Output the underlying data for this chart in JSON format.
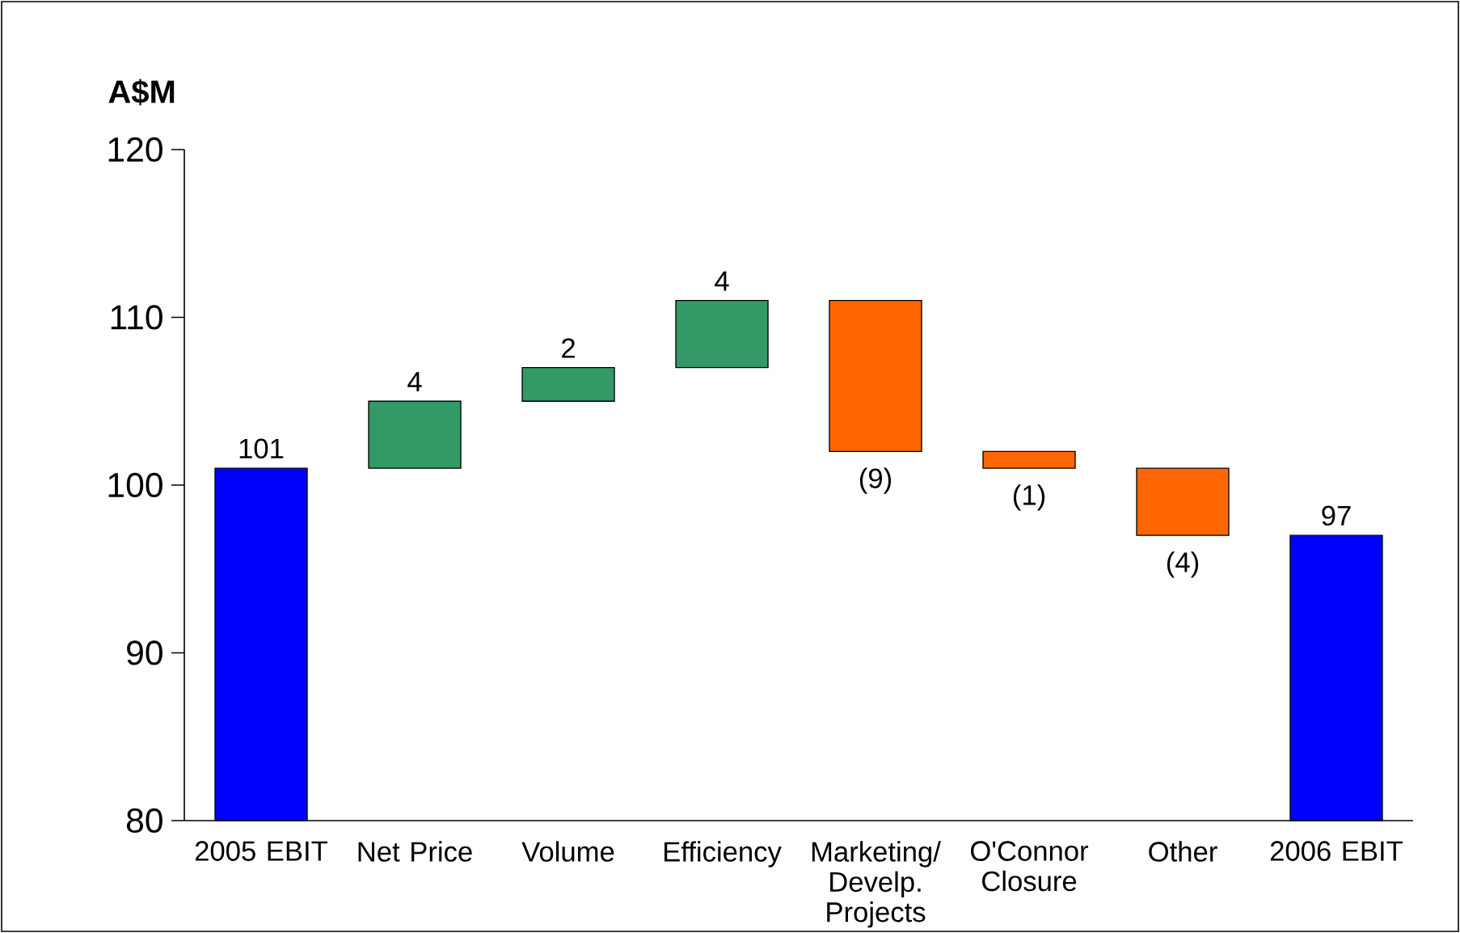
{
  "chart_data": {
    "type": "bar",
    "title": "A$M",
    "categories": [
      "2005 EBIT",
      "Net Price",
      "Volume",
      "Efficiency",
      "Marketing/ Develp. Projects",
      "O'Connor Closure",
      "Other",
      "2006 EBIT"
    ],
    "values": [
      101,
      4,
      2,
      4,
      -9,
      -1,
      -4,
      97
    ],
    "base": [
      null,
      101,
      105,
      107,
      111,
      102,
      101,
      null
    ],
    "colors": [
      "#0000ff",
      "#339966",
      "#339966",
      "#339966",
      "#ff6600",
      "#ff6600",
      "#ff6600",
      "#0000ff"
    ],
    "value_labels": [
      "101",
      "4",
      "2",
      "4",
      "(9)",
      "(1)",
      "(4)",
      "97"
    ],
    "ylim": [
      80,
      120
    ],
    "yticks": [
      80,
      90,
      100,
      110,
      120
    ],
    "grid": false
  }
}
